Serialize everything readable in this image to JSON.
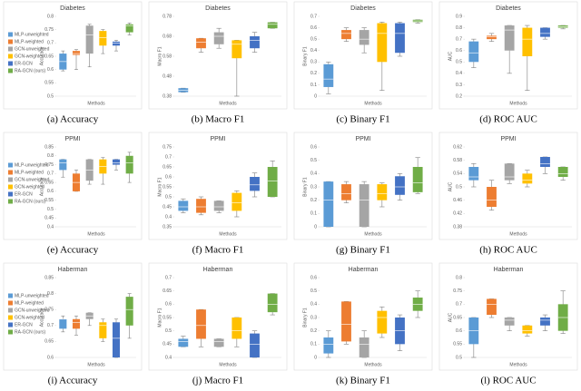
{
  "chart_data": [
    {
      "type": "box",
      "title": "Diabetes",
      "caption": "(a) Accuracy",
      "ylabel": "Accuracy",
      "xlabel": "Methods",
      "ylim": [
        0.5,
        0.8
      ],
      "yticks": [
        0.5,
        0.55,
        0.6,
        0.65,
        0.7,
        0.75,
        0.8
      ],
      "legend": "left",
      "series": [
        {
          "name": "MLP-unweighted",
          "color": "#5b9bd5",
          "values": [
            0.595,
            0.6,
            0.63,
            0.66,
            0.67
          ]
        },
        {
          "name": "MLP-weighted",
          "color": "#ed7d31",
          "values": [
            0.6,
            0.655,
            0.66,
            0.67,
            0.675
          ]
        },
        {
          "name": "GCN-unweighted",
          "color": "#a5a5a5",
          "values": [
            0.61,
            0.66,
            0.73,
            0.765,
            0.77
          ]
        },
        {
          "name": "GCN-weighted",
          "color": "#ffc000",
          "values": [
            0.66,
            0.69,
            0.72,
            0.745,
            0.75
          ]
        },
        {
          "name": "ER-GCN",
          "color": "#4472c4",
          "values": [
            0.67,
            0.69,
            0.7,
            0.705,
            0.71
          ]
        },
        {
          "name": "RA-GCN (ours)",
          "color": "#70ad47",
          "values": [
            0.73,
            0.74,
            0.765,
            0.77,
            0.775
          ]
        }
      ]
    },
    {
      "type": "box",
      "title": "Diabetes",
      "caption": "(b) Macro F1",
      "ylabel": "Macro F1",
      "xlabel": "Methods",
      "ylim": [
        0.38,
        0.78
      ],
      "yticks": [
        0.38,
        0.48,
        0.58,
        0.68,
        0.78
      ],
      "series": [
        {
          "color": "#5b9bd5",
          "values": [
            0.4,
            0.4,
            0.41,
            0.42,
            0.42
          ]
        },
        {
          "color": "#ed7d31",
          "values": [
            0.6,
            0.62,
            0.65,
            0.67,
            0.67
          ]
        },
        {
          "color": "#a5a5a5",
          "values": [
            0.62,
            0.64,
            0.68,
            0.7,
            0.72
          ]
        },
        {
          "color": "#ffc000",
          "values": [
            0.38,
            0.57,
            0.64,
            0.66,
            0.66
          ]
        },
        {
          "color": "#4472c4",
          "values": [
            0.6,
            0.62,
            0.66,
            0.68,
            0.7
          ]
        },
        {
          "color": "#70ad47",
          "values": [
            0.72,
            0.72,
            0.74,
            0.75,
            0.75
          ]
        }
      ]
    },
    {
      "type": "box",
      "title": "Diabetes",
      "caption": "(c) Binary F1",
      "ylabel": "Binary F1",
      "xlabel": "Methods",
      "ylim": [
        0,
        0.7
      ],
      "yticks": [
        0,
        0.1,
        0.2,
        0.3,
        0.4,
        0.5,
        0.6,
        0.7
      ],
      "series": [
        {
          "color": "#5b9bd5",
          "values": [
            0.02,
            0.08,
            0.15,
            0.28,
            0.3
          ]
        },
        {
          "color": "#ed7d31",
          "values": [
            0.48,
            0.5,
            0.55,
            0.58,
            0.6
          ]
        },
        {
          "color": "#a5a5a5",
          "values": [
            0.38,
            0.45,
            0.5,
            0.58,
            0.6
          ]
        },
        {
          "color": "#ffc000",
          "values": [
            0.05,
            0.3,
            0.55,
            0.64,
            0.65
          ]
        },
        {
          "color": "#4472c4",
          "values": [
            0.35,
            0.38,
            0.55,
            0.64,
            0.65
          ]
        },
        {
          "color": "#70ad47",
          "values": [
            0.64,
            0.65,
            0.66,
            0.67,
            0.67
          ]
        }
      ]
    },
    {
      "type": "box",
      "title": "Diabetes",
      "caption": "(d) ROC AUC",
      "ylabel": "AUC",
      "xlabel": "Methods",
      "ylim": [
        0.2,
        0.9
      ],
      "yticks": [
        0.2,
        0.3,
        0.4,
        0.5,
        0.6,
        0.7,
        0.8,
        0.9
      ],
      "series": [
        {
          "color": "#5b9bd5",
          "values": [
            0.45,
            0.5,
            0.58,
            0.68,
            0.7
          ]
        },
        {
          "color": "#ed7d31",
          "values": [
            0.68,
            0.7,
            0.72,
            0.73,
            0.75
          ]
        },
        {
          "color": "#a5a5a5",
          "values": [
            0.4,
            0.6,
            0.78,
            0.82,
            0.82
          ]
        },
        {
          "color": "#ffc000",
          "values": [
            0.25,
            0.55,
            0.7,
            0.8,
            0.82
          ]
        },
        {
          "color": "#4472c4",
          "values": [
            0.7,
            0.72,
            0.75,
            0.8,
            0.8
          ]
        },
        {
          "color": "#70ad47",
          "values": [
            0.79,
            0.8,
            0.81,
            0.82,
            0.82
          ]
        }
      ]
    },
    {
      "type": "box",
      "title": "PPMI",
      "caption": "(e) Accuracy",
      "ylabel": "Accuracy",
      "xlabel": "Methods",
      "ylim": [
        0.4,
        0.85
      ],
      "yticks": [
        0.4,
        0.45,
        0.5,
        0.55,
        0.6,
        0.65,
        0.7,
        0.75,
        0.8,
        0.85
      ],
      "legend": "left",
      "series": [
        {
          "name": "MLP-unweighted",
          "color": "#5b9bd5",
          "values": [
            0.68,
            0.72,
            0.76,
            0.78,
            0.78
          ]
        },
        {
          "name": "MLP-weighted",
          "color": "#ed7d31",
          "values": [
            0.6,
            0.6,
            0.65,
            0.7,
            0.72
          ]
        },
        {
          "name": "GCN-unweighted",
          "color": "#a5a5a5",
          "values": [
            0.64,
            0.66,
            0.72,
            0.78,
            0.78
          ]
        },
        {
          "name": "GCN-weighted",
          "color": "#ffc000",
          "values": [
            0.64,
            0.7,
            0.74,
            0.78,
            0.79
          ]
        },
        {
          "name": "ER-GCN",
          "color": "#4472c4",
          "values": [
            0.72,
            0.75,
            0.76,
            0.78,
            0.78
          ]
        },
        {
          "name": "RA-GCN (ours)",
          "color": "#70ad47",
          "values": [
            0.65,
            0.7,
            0.76,
            0.8,
            0.82
          ]
        }
      ]
    },
    {
      "type": "box",
      "title": "PPMI",
      "caption": "(f) Macro F1",
      "ylabel": "Macro F1",
      "xlabel": "Methods",
      "ylim": [
        0.35,
        0.75
      ],
      "yticks": [
        0.35,
        0.4,
        0.45,
        0.5,
        0.55,
        0.6,
        0.65,
        0.7,
        0.75
      ],
      "series": [
        {
          "color": "#5b9bd5",
          "values": [
            0.42,
            0.43,
            0.45,
            0.48,
            0.49
          ]
        },
        {
          "color": "#ed7d31",
          "values": [
            0.41,
            0.42,
            0.45,
            0.49,
            0.5
          ]
        },
        {
          "color": "#a5a5a5",
          "values": [
            0.42,
            0.43,
            0.45,
            0.48,
            0.48
          ]
        },
        {
          "color": "#ffc000",
          "values": [
            0.4,
            0.43,
            0.47,
            0.52,
            0.53
          ]
        },
        {
          "color": "#4472c4",
          "values": [
            0.5,
            0.53,
            0.56,
            0.6,
            0.62
          ]
        },
        {
          "color": "#70ad47",
          "values": [
            0.5,
            0.5,
            0.58,
            0.65,
            0.68
          ]
        }
      ]
    },
    {
      "type": "box",
      "title": "PPMI",
      "caption": "(g) Binary F1",
      "ylabel": "Binary F1",
      "xlabel": "Methods",
      "ylim": [
        0,
        0.6
      ],
      "yticks": [
        0,
        0.1,
        0.2,
        0.3,
        0.4,
        0.5,
        0.6
      ],
      "series": [
        {
          "color": "#5b9bd5",
          "values": [
            0,
            0,
            0.2,
            0.34,
            0.34
          ]
        },
        {
          "color": "#ed7d31",
          "values": [
            0.18,
            0.2,
            0.25,
            0.32,
            0.34
          ]
        },
        {
          "color": "#a5a5a5",
          "values": [
            0,
            0,
            0.2,
            0.32,
            0.34
          ]
        },
        {
          "color": "#ffc000",
          "values": [
            0.15,
            0.2,
            0.25,
            0.32,
            0.33
          ]
        },
        {
          "color": "#4472c4",
          "values": [
            0.2,
            0.24,
            0.3,
            0.38,
            0.4
          ]
        },
        {
          "color": "#70ad47",
          "values": [
            0.25,
            0.26,
            0.33,
            0.45,
            0.52
          ]
        }
      ]
    },
    {
      "type": "box",
      "title": "PPMI",
      "caption": "(h) ROC AUC",
      "ylabel": "AUC",
      "xlabel": "Methods",
      "ylim": [
        0.38,
        0.62
      ],
      "yticks": [
        0.38,
        0.42,
        0.46,
        0.5,
        0.54,
        0.58,
        0.62
      ],
      "series": [
        {
          "color": "#5b9bd5",
          "values": [
            0.5,
            0.52,
            0.53,
            0.56,
            0.57
          ]
        },
        {
          "color": "#ed7d31",
          "values": [
            0.43,
            0.44,
            0.46,
            0.5,
            0.52
          ]
        },
        {
          "color": "#a5a5a5",
          "values": [
            0.51,
            0.52,
            0.53,
            0.57,
            0.57
          ]
        },
        {
          "color": "#ffc000",
          "values": [
            0.5,
            0.51,
            0.52,
            0.54,
            0.55
          ]
        },
        {
          "color": "#4472c4",
          "values": [
            0.54,
            0.56,
            0.57,
            0.59,
            0.59
          ]
        },
        {
          "color": "#70ad47",
          "values": [
            0.52,
            0.53,
            0.54,
            0.56,
            0.56
          ]
        }
      ]
    },
    {
      "type": "box",
      "title": "Haberman",
      "caption": "(i) Accuracy",
      "ylabel": "Accuracy",
      "xlabel": "Methods",
      "ylim": [
        0.6,
        0.85
      ],
      "yticks": [
        0.6,
        0.65,
        0.7,
        0.75,
        0.8,
        0.85
      ],
      "legend": "left",
      "series": [
        {
          "name": "MLP-unweighted",
          "color": "#5b9bd5",
          "values": [
            0.68,
            0.69,
            0.72,
            0.72,
            0.73
          ]
        },
        {
          "name": "MLP-weighted",
          "color": "#ed7d31",
          "values": [
            0.67,
            0.69,
            0.71,
            0.72,
            0.73
          ]
        },
        {
          "name": "GCN-unweighted",
          "color": "#a5a5a5",
          "values": [
            0.7,
            0.72,
            0.73,
            0.74,
            0.74
          ]
        },
        {
          "name": "GCN-weighted",
          "color": "#ffc000",
          "values": [
            0.65,
            0.66,
            0.7,
            0.71,
            0.72
          ]
        },
        {
          "name": "ER-GCN",
          "color": "#4472c4",
          "values": [
            0.6,
            0.6,
            0.66,
            0.71,
            0.72
          ]
        },
        {
          "name": "RA-GCN (ours)",
          "color": "#70ad47",
          "values": [
            0.66,
            0.7,
            0.75,
            0.79,
            0.8
          ]
        }
      ]
    },
    {
      "type": "box",
      "title": "Haberman",
      "caption": "(j) Macro F1",
      "ylabel": "Macro F1",
      "xlabel": "Methods",
      "ylim": [
        0.4,
        0.7
      ],
      "yticks": [
        0.4,
        0.45,
        0.5,
        0.55,
        0.6,
        0.65,
        0.7
      ],
      "series": [
        {
          "color": "#5b9bd5",
          "values": [
            0.44,
            0.44,
            0.46,
            0.47,
            0.48
          ]
        },
        {
          "color": "#ed7d31",
          "values": [
            0.44,
            0.47,
            0.52,
            0.58,
            0.58
          ]
        },
        {
          "color": "#a5a5a5",
          "values": [
            0.44,
            0.44,
            0.46,
            0.47,
            0.47
          ]
        },
        {
          "color": "#ffc000",
          "values": [
            0.44,
            0.47,
            0.5,
            0.55,
            0.55
          ]
        },
        {
          "color": "#4472c4",
          "values": [
            0.4,
            0.4,
            0.45,
            0.49,
            0.5
          ]
        },
        {
          "color": "#70ad47",
          "values": [
            0.56,
            0.57,
            0.6,
            0.64,
            0.64
          ]
        }
      ]
    },
    {
      "type": "box",
      "title": "Haberman",
      "caption": "(k) Binary F1",
      "ylabel": "Binary F1",
      "xlabel": "Methods",
      "ylim": [
        0,
        0.6
      ],
      "yticks": [
        0,
        0.1,
        0.2,
        0.3,
        0.4,
        0.5,
        0.6
      ],
      "series": [
        {
          "color": "#5b9bd5",
          "values": [
            0,
            0.03,
            0.1,
            0.15,
            0.2
          ]
        },
        {
          "color": "#ed7d31",
          "values": [
            0.1,
            0.12,
            0.25,
            0.42,
            0.42
          ]
        },
        {
          "color": "#a5a5a5",
          "values": [
            0,
            0,
            0.1,
            0.15,
            0.2
          ]
        },
        {
          "color": "#ffc000",
          "values": [
            0.15,
            0.18,
            0.3,
            0.35,
            0.38
          ]
        },
        {
          "color": "#4472c4",
          "values": [
            0.05,
            0.1,
            0.2,
            0.3,
            0.32
          ]
        },
        {
          "color": "#70ad47",
          "values": [
            0.3,
            0.35,
            0.4,
            0.45,
            0.5
          ]
        }
      ]
    },
    {
      "type": "box",
      "title": "Haberman",
      "caption": "(l) ROC AUC",
      "ylabel": "AUC",
      "xlabel": "Methods",
      "ylim": [
        0.5,
        0.8
      ],
      "yticks": [
        0.5,
        0.55,
        0.6,
        0.65,
        0.7,
        0.75,
        0.8
      ],
      "series": [
        {
          "color": "#5b9bd5",
          "values": [
            0.5,
            0.55,
            0.6,
            0.65,
            0.65
          ]
        },
        {
          "color": "#ed7d31",
          "values": [
            0.65,
            0.66,
            0.7,
            0.72,
            0.72
          ]
        },
        {
          "color": "#a5a5a5",
          "values": [
            0.6,
            0.62,
            0.64,
            0.65,
            0.65
          ]
        },
        {
          "color": "#ffc000",
          "values": [
            0.58,
            0.59,
            0.6,
            0.62,
            0.62
          ]
        },
        {
          "color": "#4472c4",
          "values": [
            0.6,
            0.62,
            0.64,
            0.65,
            0.66
          ]
        },
        {
          "color": "#70ad47",
          "values": [
            0.59,
            0.6,
            0.65,
            0.7,
            0.75
          ]
        }
      ]
    }
  ]
}
